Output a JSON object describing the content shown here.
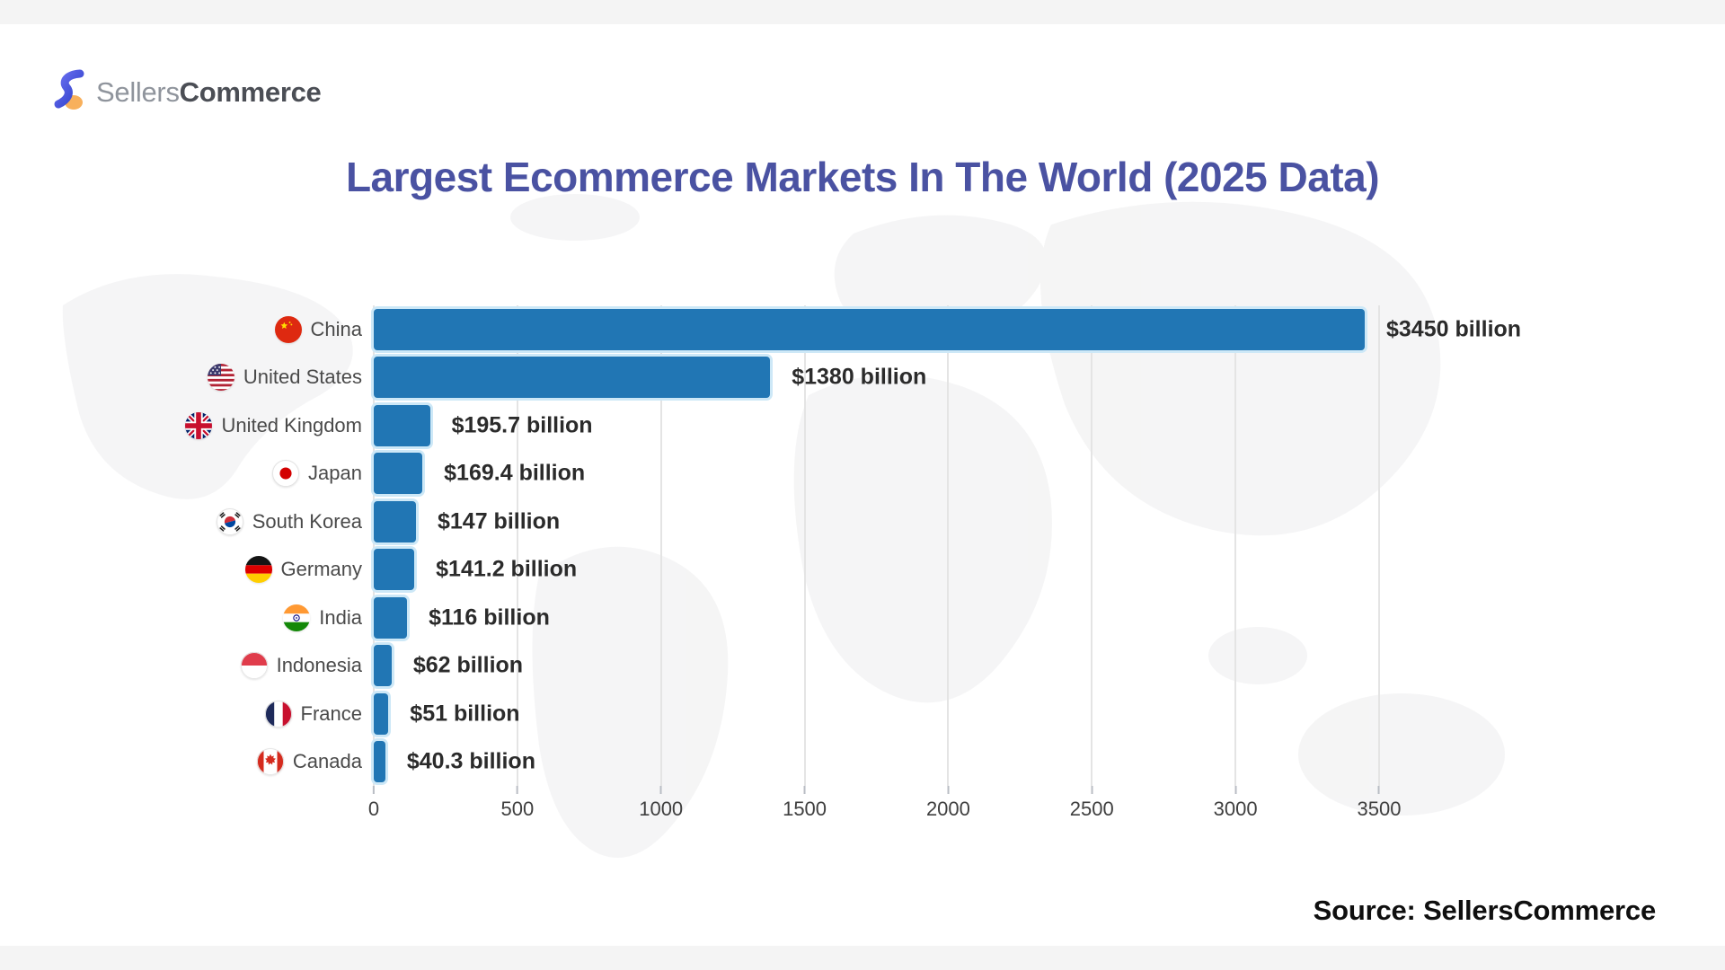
{
  "logo": {
    "sellers": "Sellers",
    "commerce": "Commerce"
  },
  "title": "Largest Ecommerce Markets In The World (2025 Data)",
  "source_label": "Source: SellersCommerce",
  "colors": {
    "bar": "#2176B4",
    "bar_halo": "#CDE8F7",
    "title": "#4A52A2",
    "value_label": "#2B2B2B"
  },
  "chart_data": {
    "type": "bar",
    "orientation": "horizontal",
    "title": "Largest Ecommerce Markets In The World (2025 Data)",
    "unit": "USD billions",
    "xlim": [
      0,
      3500
    ],
    "x_ticks": [
      0,
      500,
      1000,
      1500,
      2000,
      2500,
      3000,
      3500
    ],
    "grid": true,
    "legend": false,
    "categories": [
      "China",
      "United States",
      "United Kingdom",
      "Japan",
      "South Korea",
      "Germany",
      "India",
      "Indonesia",
      "France",
      "Canada"
    ],
    "values": [
      3450,
      1380,
      195.7,
      169.4,
      147,
      141.2,
      116,
      62,
      51,
      40.3
    ],
    "value_labels": [
      "$3450 billion",
      "$1380 billion",
      "$195.7 billion",
      "$169.4 billion",
      "$147 billion",
      "$141.2 billion",
      "$116 billion",
      "$62 billion",
      "$51 billion",
      "$40.3 billion"
    ],
    "flags": [
      "china",
      "united-states",
      "united-kingdom",
      "japan",
      "south-korea",
      "germany",
      "india",
      "indonesia",
      "france",
      "canada"
    ]
  }
}
